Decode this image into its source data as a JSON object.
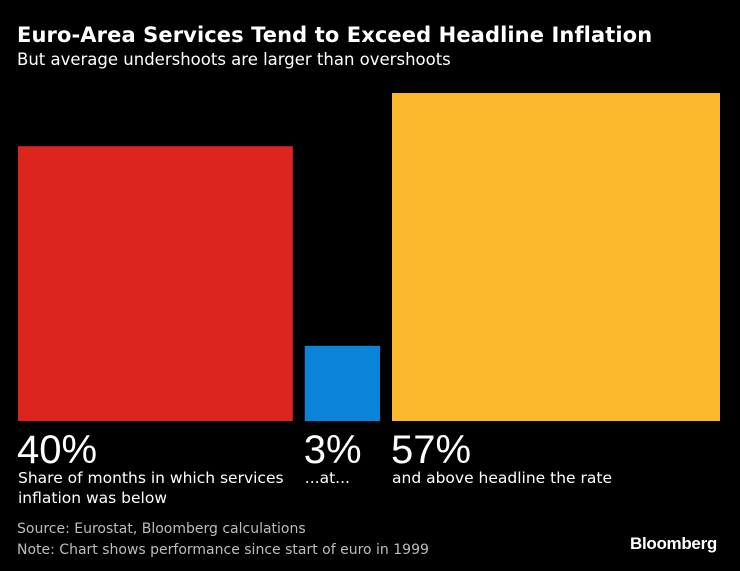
{
  "title": "Euro-Area Services Tend to Exceed Headline Inflation",
  "subtitle": "But average undershoots are larger than overshoots",
  "chart_data": {
    "type": "bar",
    "categories": [
      "below",
      "at",
      "above"
    ],
    "series": [
      {
        "name": "Share of months",
        "values": [
          40,
          3,
          57
        ],
        "value_labels": [
          "40%",
          "3%",
          "57%"
        ],
        "descriptions": [
          [
            "Share of months in which services",
            "inflation was below"
          ],
          [
            "...at..."
          ],
          [
            "and above headline the rate"
          ]
        ],
        "colors": [
          "#dc241f",
          "#0a84d8",
          "#fdb92e"
        ]
      }
    ],
    "title": "Euro-Area Services Tend to Exceed Headline Inflation",
    "xlabel": "",
    "ylabel": "",
    "grid": false,
    "legend": "none"
  },
  "footer": {
    "source": "Source: Eurostat, Bloomberg calculations",
    "note": "Note: Chart shows performance since start of euro in 1999"
  },
  "brand": "Bloomberg"
}
